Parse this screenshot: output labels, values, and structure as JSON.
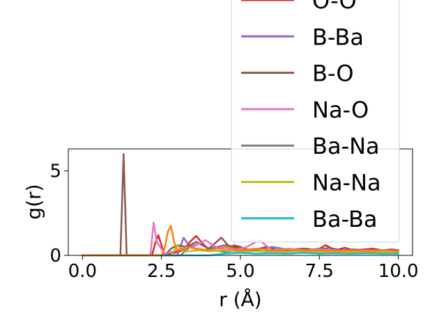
{
  "chart_data": {
    "type": "line",
    "xlabel": "r (Å)",
    "ylabel": "g(r)",
    "xlim": [
      -0.45,
      10.45
    ],
    "ylim": [
      0,
      6.3
    ],
    "xticks": [
      0.0,
      2.5,
      5.0,
      7.5,
      10.0
    ],
    "xtick_labels": [
      "0.0",
      "2.5",
      "5.0",
      "7.5",
      "10.0"
    ],
    "yticks": [
      0,
      5
    ],
    "ytick_labels": [
      "0",
      "5"
    ],
    "grid": false,
    "legend_placement": "upper-right, extending above axes",
    "legend_entries": [
      "O-O",
      "B-Ba",
      "B-O",
      "Na-O",
      "Ba-Na",
      "Na-Na",
      "Ba-Ba"
    ],
    "series": [
      {
        "name": "O-O",
        "color": "#d62728",
        "x": [
          0,
          2.2,
          2.3,
          2.4,
          2.5,
          2.6,
          3.2,
          3.4,
          3.6,
          3.8,
          4.0,
          4.3,
          4.6,
          4.8,
          5.0,
          5.3,
          5.6,
          5.9,
          6.2,
          6.5,
          6.8,
          7.1,
          7.4,
          7.7,
          8.0,
          8.3,
          8.6,
          8.9,
          9.2,
          9.5,
          9.8,
          10.0
        ],
        "y": [
          0,
          0,
          0.7,
          1.2,
          0.6,
          0,
          0.3,
          0.8,
          1.15,
          0.7,
          0.35,
          0.5,
          0.3,
          0.6,
          0.5,
          0.3,
          0.4,
          0.3,
          0.2,
          0.35,
          0.25,
          0.4,
          0.3,
          0.6,
          0.3,
          0.45,
          0.3,
          0.35,
          0.4,
          0.3,
          0.35,
          0.3
        ]
      },
      {
        "name": "B-Ba",
        "color": "#9467bd",
        "x": [
          0,
          3.0,
          3.2,
          3.4,
          3.7,
          4.0,
          4.5,
          5.0,
          5.5,
          6.0,
          6.5,
          7.0,
          7.5,
          8.0,
          8.5,
          9.0,
          9.5,
          10.0
        ],
        "y": [
          0,
          0,
          1.05,
          0.5,
          0.7,
          0.4,
          0.6,
          0.4,
          0.3,
          0.5,
          0.35,
          0.3,
          0.4,
          0.25,
          0.35,
          0.3,
          0.3,
          0.25
        ]
      },
      {
        "name": "B-O",
        "color": "#8c564b",
        "x": [
          0,
          1.2,
          1.3,
          1.4,
          2.6,
          2.8,
          3.0,
          3.3,
          3.6,
          4.0,
          4.4,
          4.6,
          5.0,
          5.4,
          5.8,
          6.2,
          6.6,
          7.0,
          7.4,
          7.8,
          8.2,
          8.6,
          9.0,
          9.4,
          9.8,
          10.0
        ],
        "y": [
          0,
          0,
          6.0,
          0,
          0,
          0.4,
          0.6,
          0.5,
          0.8,
          0.4,
          1.05,
          0.6,
          0.4,
          0.3,
          0.5,
          0.3,
          0.35,
          0.4,
          0.3,
          0.45,
          0.3,
          0.35,
          0.3,
          0.3,
          0.25,
          0.3
        ]
      },
      {
        "name": "Na-O",
        "color": "#e377c2",
        "x": [
          0,
          2.15,
          2.25,
          2.35,
          2.6,
          3.0,
          3.5,
          3.9,
          4.3,
          4.8,
          5.2,
          5.6,
          6.0,
          6.5,
          7.0,
          7.5,
          8.0,
          8.5,
          9.0,
          9.5,
          10.0
        ],
        "y": [
          0,
          0,
          1.95,
          0.8,
          0.1,
          0.3,
          0.5,
          0.9,
          0.4,
          0.3,
          0.5,
          0.9,
          0.3,
          0.4,
          0.3,
          0.35,
          0.3,
          0.25,
          0.3,
          0.3,
          0.25
        ]
      },
      {
        "name": "Ba-Na",
        "color": "#7f7f7f",
        "x": [
          0,
          3.1,
          3.4,
          3.7,
          4.0,
          4.5,
          5.0,
          5.5,
          6.0,
          6.5,
          7.0,
          7.5,
          8.0,
          8.5,
          9.0,
          9.5,
          10.0
        ],
        "y": [
          0,
          0,
          0.5,
          0.3,
          0.35,
          0.2,
          0.3,
          0.25,
          0.2,
          0.3,
          0.2,
          0.2,
          0.25,
          0.2,
          0.2,
          0.2,
          0.2
        ]
      },
      {
        "name": "Na-Na",
        "color": "#bcbd22",
        "x": [
          0,
          2.8,
          3.0,
          3.2,
          3.6,
          4.0,
          4.5,
          5.0,
          5.5,
          6.0,
          6.5,
          7.0,
          7.5,
          8.0,
          8.5,
          9.0,
          9.5,
          10.0
        ],
        "y": [
          0,
          0,
          0.6,
          0.2,
          0.3,
          0.25,
          0.3,
          0.2,
          0.25,
          0.2,
          0.2,
          0.25,
          0.2,
          0.2,
          0.2,
          0.2,
          0.2,
          0.2
        ]
      },
      {
        "name": "Ba-Ba",
        "color": "#17becf",
        "x": [
          0,
          4.0,
          4.5,
          5.0,
          5.5,
          6.0,
          6.5,
          7.0,
          7.5,
          8.0,
          8.5,
          9.0,
          9.5,
          10.0
        ],
        "y": [
          0,
          0,
          0.1,
          0.15,
          0.1,
          0.12,
          0.1,
          0.15,
          0.1,
          0.12,
          0.1,
          0.12,
          0.1,
          0.1
        ]
      },
      {
        "name": "",
        "color": "#ff7f0e",
        "x": [
          0,
          2.5,
          2.6,
          2.7,
          2.8,
          2.9,
          3.0,
          3.3,
          3.6,
          4.0,
          4.5,
          5.0,
          5.5,
          6.0,
          6.5,
          7.0,
          7.5,
          8.0,
          8.5,
          9.0,
          9.5,
          10.0
        ],
        "y": [
          0,
          0,
          0.4,
          1.4,
          1.75,
          0.8,
          0.3,
          0.5,
          0.4,
          0.3,
          0.5,
          0.3,
          0.4,
          0.3,
          0.35,
          0.3,
          0.3,
          0.25,
          0.3,
          0.25,
          0.3,
          0.25
        ]
      }
    ]
  }
}
